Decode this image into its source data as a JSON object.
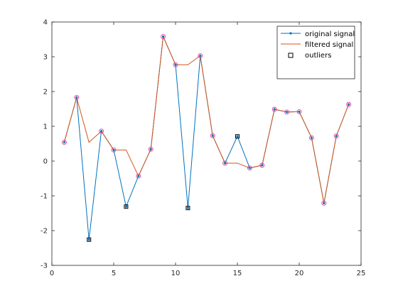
{
  "chart_data": {
    "type": "line",
    "title": "",
    "xlabel": "",
    "ylabel": "",
    "xlim": [
      0,
      25
    ],
    "ylim": [
      -3,
      4
    ],
    "xticks": [
      0,
      5,
      10,
      15,
      20,
      25
    ],
    "yticks": [
      -3,
      -2,
      -1,
      0,
      1,
      2,
      3,
      4
    ],
    "grid": false,
    "legend_position": "top-right",
    "x": [
      1,
      2,
      3,
      4,
      5,
      6,
      7,
      8,
      9,
      10,
      11,
      12,
      13,
      14,
      15,
      16,
      17,
      18,
      19,
      20,
      21,
      22,
      23,
      24
    ],
    "series": [
      {
        "name": "original signal",
        "color": "#0072BD",
        "marker": "point",
        "values": [
          0.54,
          1.83,
          -2.26,
          0.86,
          0.32,
          -1.31,
          -0.43,
          0.34,
          3.58,
          2.77,
          -1.35,
          3.03,
          0.73,
          -0.06,
          0.71,
          -0.2,
          -0.12,
          1.49,
          1.41,
          1.42,
          0.67,
          -1.21,
          0.72,
          1.63
        ]
      },
      {
        "name": "filtered signal",
        "color": "#D95319",
        "marker": "none",
        "values": [
          0.54,
          1.83,
          0.54,
          0.86,
          0.32,
          0.32,
          -0.43,
          0.34,
          3.58,
          2.77,
          2.77,
          3.03,
          0.73,
          -0.06,
          -0.06,
          -0.2,
          -0.12,
          1.49,
          1.41,
          1.42,
          0.67,
          -1.21,
          0.72,
          1.63
        ]
      },
      {
        "name": "outliers",
        "color": "#000000",
        "marker": "square",
        "x": [
          3,
          6,
          11,
          15
        ],
        "values": [
          -2.26,
          -1.31,
          -1.35,
          0.71
        ]
      }
    ],
    "circle_markers": {
      "color": "#E0409A",
      "note_series": "filtered signal"
    }
  }
}
